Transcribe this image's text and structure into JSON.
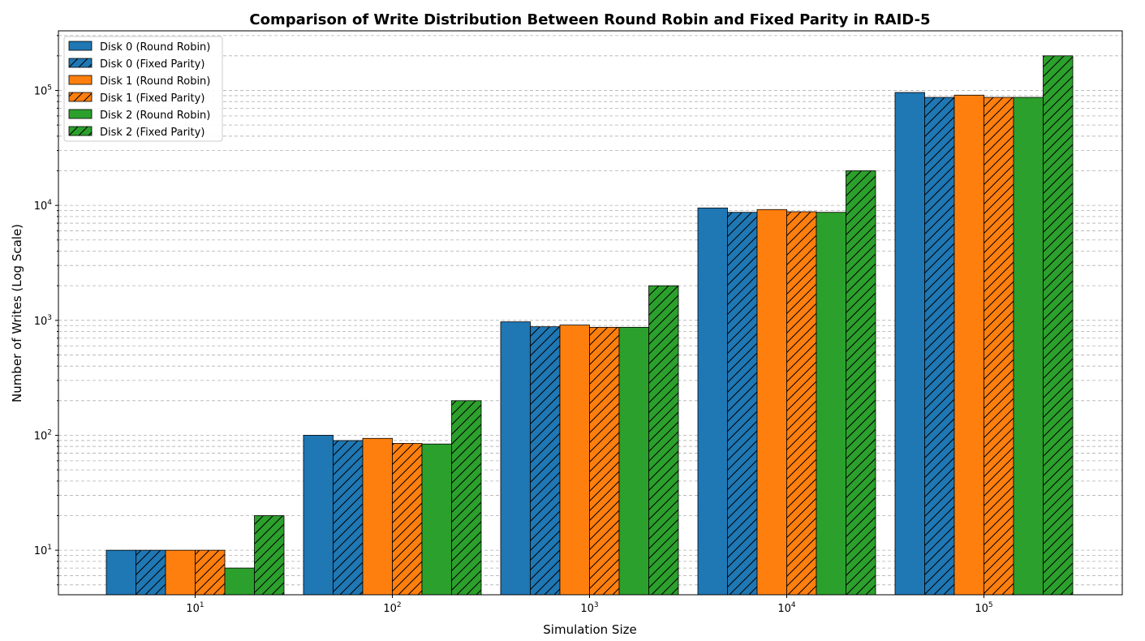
{
  "chart_data": {
    "type": "bar",
    "title": "Comparison of Write Distribution Between Round Robin and Fixed Parity in RAID-5",
    "xlabel": "Simulation Size",
    "ylabel": "Number of Writes (Log Scale)",
    "yscale": "log",
    "ylim": [
      4.1,
      330000
    ],
    "grid": "y-major-and-minor-dashed",
    "legend_position": "top-left",
    "categories": [
      10,
      100,
      1000,
      10000,
      100000
    ],
    "category_tick_labels": [
      {
        "base": "10",
        "exp": "1"
      },
      {
        "base": "10",
        "exp": "2"
      },
      {
        "base": "10",
        "exp": "3"
      },
      {
        "base": "10",
        "exp": "4"
      },
      {
        "base": "10",
        "exp": "5"
      }
    ],
    "y_tick_labels": [
      {
        "value": 10,
        "base": "10",
        "exp": "1"
      },
      {
        "value": 100,
        "base": "10",
        "exp": "2"
      },
      {
        "value": 1000,
        "base": "10",
        "exp": "3"
      },
      {
        "value": 10000,
        "base": "10",
        "exp": "4"
      },
      {
        "value": 100000,
        "base": "10",
        "exp": "5"
      }
    ],
    "series": [
      {
        "name": "Disk 0 (Round Robin)",
        "color": "#1f77b4",
        "hatch": false,
        "values": [
          10,
          100,
          970,
          9500,
          96000
        ]
      },
      {
        "name": "Disk 0 (Fixed Parity)",
        "color": "#1f77b4",
        "hatch": true,
        "values": [
          10,
          90,
          880,
          8700,
          87000
        ]
      },
      {
        "name": "Disk 1 (Round Robin)",
        "color": "#ff7f0e",
        "hatch": false,
        "values": [
          10,
          94,
          910,
          9200,
          91000
        ]
      },
      {
        "name": "Disk 1 (Fixed Parity)",
        "color": "#ff7f0e",
        "hatch": true,
        "values": [
          10,
          85,
          870,
          8800,
          87000
        ]
      },
      {
        "name": "Disk 2 (Round Robin)",
        "color": "#2ca02c",
        "hatch": false,
        "values": [
          7,
          84,
          870,
          8700,
          87000
        ]
      },
      {
        "name": "Disk 2 (Fixed Parity)",
        "color": "#2ca02c",
        "hatch": true,
        "values": [
          20,
          200,
          2000,
          20000,
          200000
        ]
      }
    ]
  }
}
